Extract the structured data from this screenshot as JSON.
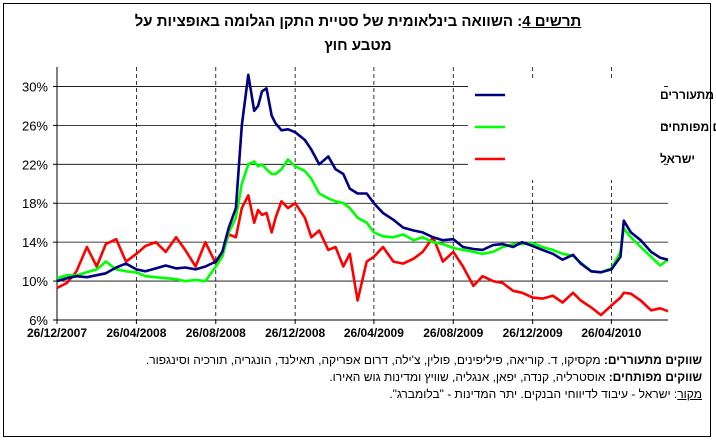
{
  "title": {
    "prefix": "תרשים 4",
    "line1": ": השוואה בינלאומית של סטיית התקן הגלומה באופציות על",
    "line2": "מטבע חוץ"
  },
  "notes": {
    "emerging_label": "שווקים מתעוררים:",
    "emerging_text": " מקסיקו, ד. קוריאה, פיליפינים, פולין, צ'ילה, דרום אפריקה, תאילנד, הונגריה, תורכיה וסינגפור.",
    "developed_label": "שווקים מפותחים:",
    "developed_text": " אוסטרליה, קנדה, יפאן, אנגליה, שוויץ ומדינות גוש האירו.",
    "source_label": "מקור",
    "source_text": ": ישראל - עיבוד לדיווחי הבנקים. יתר המדינות - \"בלומברג\"."
  },
  "chart_data": {
    "type": "line",
    "title": "השוואה בינלאומית של סטיית התקן הגלומה באופציות על מטבע חוץ",
    "ylim": [
      6,
      32
    ],
    "yticks": [
      "6%",
      "10%",
      "14%",
      "18%",
      "22%",
      "26%",
      "30%"
    ],
    "ytick_values": [
      6,
      10,
      14,
      18,
      22,
      26,
      30
    ],
    "xticks": [
      "26/12/2007",
      "26/04/2008",
      "26/08/2008",
      "26/12/2008",
      "26/04/2009",
      "26/08/2009",
      "26/12/2009",
      "26/04/2010"
    ],
    "x_range": [
      "26/12/2007",
      "22/07/2010"
    ],
    "grid": "horizontal solid, vertical dashed",
    "legend_position": "top-right",
    "series": [
      {
        "name": "ממוצע שווקים מתעוררים",
        "color": "#000080",
        "x": [
          "26/12/2007",
          "10/01/2008",
          "25/01/2008",
          "10/02/2008",
          "25/02/2008",
          "10/03/2008",
          "26/03/2008",
          "10/04/2008",
          "26/04/2008",
          "10/05/2008",
          "26/05/2008",
          "10/06/2008",
          "26/06/2008",
          "10/07/2008",
          "26/07/2008",
          "10/08/2008",
          "26/08/2008",
          "05/09/2008",
          "15/09/2008",
          "26/09/2008",
          "05/10/2008",
          "15/10/2008",
          "24/10/2008",
          "30/10/2008",
          "05/11/2008",
          "12/11/2008",
          "20/11/2008",
          "26/11/2008",
          "05/12/2008",
          "15/12/2008",
          "26/12/2008",
          "10/01/2009",
          "20/01/2009",
          "01/02/2009",
          "15/02/2009",
          "26/02/2009",
          "10/03/2009",
          "20/03/2009",
          "01/04/2009",
          "15/04/2009",
          "26/04/2009",
          "10/05/2009",
          "26/05/2009",
          "10/06/2009",
          "26/06/2009",
          "10/07/2009",
          "26/07/2009",
          "10/08/2009",
          "26/08/2009",
          "10/09/2009",
          "26/09/2009",
          "10/10/2009",
          "26/10/2009",
          "10/11/2009",
          "26/11/2009",
          "10/12/2009",
          "26/12/2009",
          "10/01/2010",
          "26/01/2010",
          "10/02/2010",
          "26/02/2010",
          "10/03/2010",
          "26/03/2010",
          "10/04/2010",
          "26/04/2010",
          "10/05/2010",
          "15/05/2010",
          "26/05/2010",
          "10/06/2010",
          "26/06/2010",
          "10/07/2010",
          "22/07/2010"
        ],
        "values": [
          10.0,
          10.3,
          10.5,
          10.4,
          10.6,
          10.8,
          11.4,
          11.8,
          11.2,
          11.0,
          11.3,
          11.6,
          11.3,
          11.4,
          11.2,
          11.5,
          12.0,
          13.0,
          15.5,
          17.5,
          26.0,
          31.2,
          27.5,
          28.0,
          29.5,
          29.8,
          27.0,
          26.2,
          25.5,
          25.6,
          25.3,
          24.5,
          23.5,
          22.0,
          22.8,
          21.5,
          21.0,
          19.5,
          19.0,
          19.0,
          18.0,
          17.0,
          16.3,
          15.5,
          15.2,
          15.0,
          14.5,
          14.2,
          14.3,
          13.5,
          13.3,
          13.2,
          13.7,
          13.8,
          13.5,
          14.0,
          13.6,
          13.2,
          12.8,
          12.2,
          12.7,
          11.8,
          11.0,
          10.9,
          11.2,
          12.5,
          16.2,
          15.0,
          14.2,
          13.0,
          12.4,
          12.2
        ]
      },
      {
        "name": "ממוצע שווקים מפותחים",
        "color": "#00ff00",
        "x": [
          "26/12/2007",
          "10/01/2008",
          "25/01/2008",
          "10/02/2008",
          "25/02/2008",
          "10/03/2008",
          "26/03/2008",
          "10/04/2008",
          "26/04/2008",
          "10/05/2008",
          "26/05/2008",
          "10/06/2008",
          "26/06/2008",
          "10/07/2008",
          "26/07/2008",
          "10/08/2008",
          "26/08/2008",
          "05/09/2008",
          "15/09/2008",
          "26/09/2008",
          "05/10/2008",
          "15/10/2008",
          "24/10/2008",
          "30/10/2008",
          "05/11/2008",
          "12/11/2008",
          "20/11/2008",
          "26/11/2008",
          "05/12/2008",
          "15/12/2008",
          "26/12/2008",
          "10/01/2009",
          "20/01/2009",
          "01/02/2009",
          "15/02/2009",
          "26/02/2009",
          "10/03/2009",
          "20/03/2009",
          "01/04/2009",
          "15/04/2009",
          "26/04/2009",
          "10/05/2009",
          "26/05/2009",
          "10/06/2009",
          "26/06/2009",
          "10/07/2009",
          "26/07/2009",
          "10/08/2009",
          "26/08/2009",
          "10/09/2009",
          "26/09/2009",
          "10/10/2009",
          "26/10/2009",
          "10/11/2009",
          "26/11/2009",
          "10/12/2009",
          "26/12/2009",
          "10/01/2010",
          "26/01/2010",
          "10/02/2010",
          "26/02/2010",
          "10/03/2010",
          "26/03/2010",
          "10/04/2010",
          "26/04/2010",
          "10/05/2010",
          "15/05/2010",
          "26/05/2010",
          "10/06/2010",
          "26/06/2010",
          "10/07/2010",
          "22/07/2010"
        ],
        "values": [
          10.3,
          10.6,
          10.6,
          10.9,
          11.2,
          12.0,
          11.2,
          11.0,
          10.9,
          10.5,
          10.4,
          10.3,
          10.2,
          10.0,
          10.1,
          10.0,
          11.5,
          12.5,
          15.0,
          16.5,
          20.0,
          22.0,
          22.3,
          21.8,
          22.0,
          21.5,
          21.0,
          21.0,
          21.5,
          22.5,
          21.8,
          21.3,
          20.5,
          19.0,
          18.5,
          18.2,
          18.0,
          17.5,
          16.5,
          16.0,
          15.0,
          14.6,
          14.5,
          14.8,
          14.2,
          14.5,
          14.0,
          13.8,
          13.4,
          13.2,
          13.0,
          12.8,
          13.0,
          13.5,
          13.8,
          13.8,
          13.9,
          13.5,
          13.2,
          12.8,
          12.6,
          11.9,
          11.0,
          10.9,
          11.3,
          13.0,
          15.4,
          14.5,
          13.5,
          12.5,
          11.6,
          12.2
        ]
      },
      {
        "name": "ישראל",
        "color": "#ff0000",
        "x": [
          "26/12/2007",
          "10/01/2008",
          "25/01/2008",
          "10/02/2008",
          "25/02/2008",
          "10/03/2008",
          "26/03/2008",
          "10/04/2008",
          "26/04/2008",
          "10/05/2008",
          "26/05/2008",
          "10/06/2008",
          "26/06/2008",
          "10/07/2008",
          "26/07/2008",
          "10/08/2008",
          "26/08/2008",
          "05/09/2008",
          "15/09/2008",
          "26/09/2008",
          "05/10/2008",
          "15/10/2008",
          "24/10/2008",
          "30/10/2008",
          "05/11/2008",
          "12/11/2008",
          "20/11/2008",
          "26/11/2008",
          "05/12/2008",
          "15/12/2008",
          "26/12/2008",
          "10/01/2009",
          "20/01/2009",
          "01/02/2009",
          "15/02/2009",
          "26/02/2009",
          "10/03/2009",
          "20/03/2009",
          "01/04/2009",
          "15/04/2009",
          "26/04/2009",
          "10/05/2009",
          "26/05/2009",
          "10/06/2009",
          "26/06/2009",
          "10/07/2009",
          "26/07/2009",
          "10/08/2009",
          "26/08/2009",
          "10/09/2009",
          "26/09/2009",
          "10/10/2009",
          "26/10/2009",
          "10/11/2009",
          "26/11/2009",
          "10/12/2009",
          "26/12/2009",
          "10/01/2010",
          "26/01/2010",
          "10/02/2010",
          "26/02/2010",
          "10/03/2010",
          "26/03/2010",
          "10/04/2010",
          "26/04/2010",
          "10/05/2010",
          "15/05/2010",
          "26/05/2010",
          "10/06/2010",
          "26/06/2010",
          "10/07/2010",
          "22/07/2010"
        ],
        "values": [
          9.3,
          9.8,
          11.0,
          13.5,
          11.5,
          13.8,
          14.3,
          12.0,
          12.8,
          13.6,
          14.0,
          13.0,
          14.5,
          13.2,
          11.5,
          14.0,
          11.8,
          13.0,
          14.8,
          14.5,
          17.5,
          18.8,
          16.0,
          17.3,
          16.8,
          17.0,
          15.0,
          16.5,
          18.2,
          17.5,
          18.0,
          16.5,
          14.5,
          15.2,
          13.2,
          13.5,
          11.5,
          12.8,
          8.0,
          12.0,
          12.5,
          13.5,
          12.0,
          11.8,
          12.3,
          13.0,
          14.5,
          12.0,
          13.0,
          11.5,
          9.5,
          10.5,
          10.0,
          9.8,
          9.0,
          8.8,
          8.3,
          8.2,
          8.5,
          7.8,
          8.8,
          8.0,
          7.3,
          6.5,
          7.5,
          8.3,
          8.8,
          8.7,
          8.0,
          7.0,
          7.2,
          6.9
        ]
      }
    ]
  }
}
